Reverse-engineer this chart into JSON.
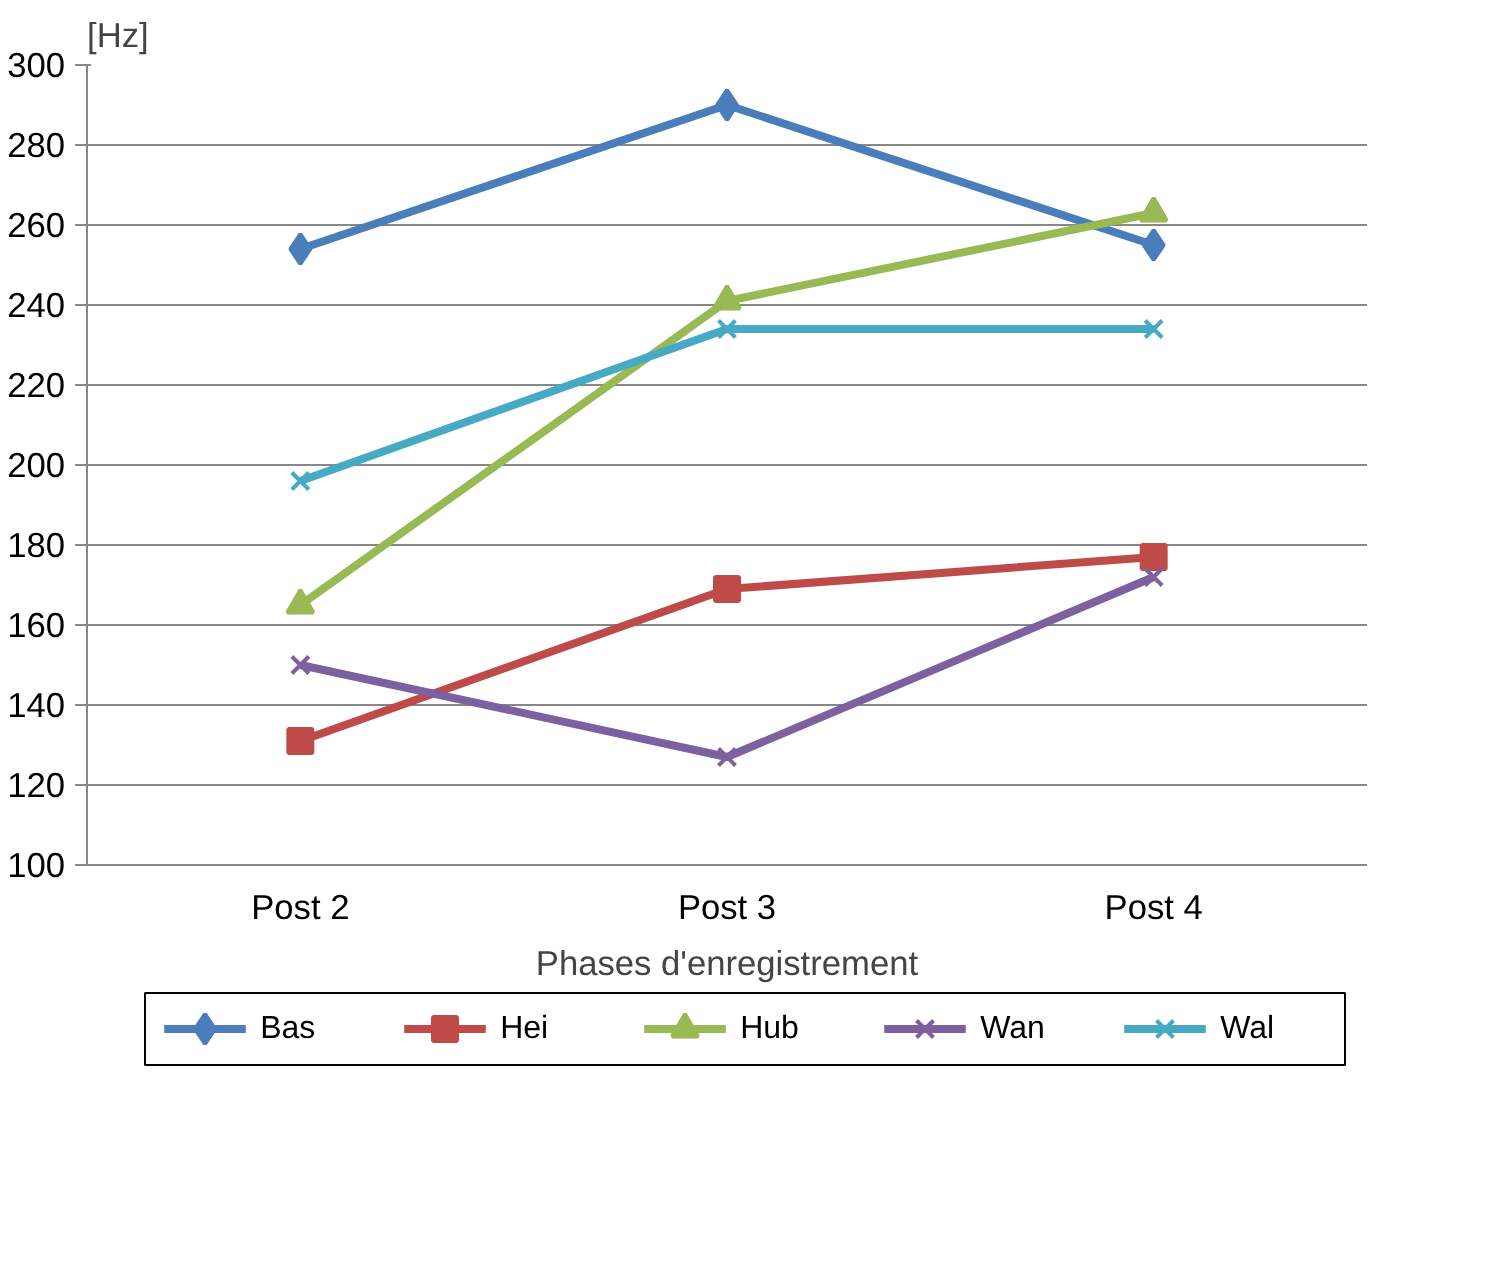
{
  "chart_data": {
    "type": "line",
    "xlabel": "Phases d'enregistrement",
    "ylabel": "[Hz]",
    "categories": [
      "Post 2",
      "Post 3",
      "Post 4"
    ],
    "series": [
      {
        "name": "Bas",
        "color": "#4a7ebb",
        "marker": "diamond",
        "values": [
          254,
          290,
          255
        ]
      },
      {
        "name": "Hei",
        "color": "#be4b48",
        "marker": "square",
        "values": [
          131,
          169,
          177
        ]
      },
      {
        "name": "Hub",
        "color": "#98b954",
        "marker": "triangle",
        "values": [
          165,
          241,
          263
        ]
      },
      {
        "name": "Wan",
        "color": "#7d60a0",
        "marker": "cross",
        "values": [
          150,
          127,
          172
        ]
      },
      {
        "name": "Wal",
        "color": "#46aac5",
        "marker": "cross",
        "values": [
          196,
          234,
          234
        ]
      }
    ],
    "ylim": [
      100,
      300
    ],
    "yticks": [
      100,
      120,
      140,
      160,
      180,
      200,
      220,
      240,
      260,
      280,
      300
    ],
    "grid": "y",
    "legend": "bottom"
  }
}
